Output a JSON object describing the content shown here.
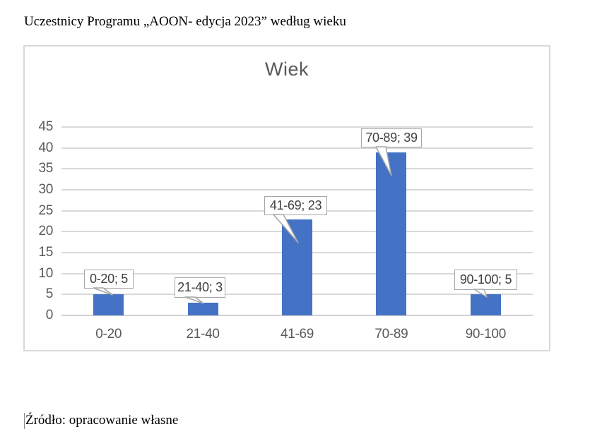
{
  "page": {
    "doc_title": "Uczestnicy Programu „AOON- edycja 2023” według wieku",
    "source_note": "Źródło: opracowanie własne"
  },
  "chart_data": {
    "type": "bar",
    "title": "Wiek",
    "categories": [
      "0-20",
      "21-40",
      "41-69",
      "70-89",
      "90-100"
    ],
    "values": [
      5,
      3,
      23,
      39,
      5
    ],
    "data_labels": [
      "0-20; 5",
      "21-40; 3",
      "41-69; 23",
      "70-89; 39",
      "90-100; 5"
    ],
    "y_ticks": [
      0,
      5,
      10,
      15,
      20,
      25,
      30,
      35,
      40,
      45
    ],
    "ylim": [
      0,
      45
    ],
    "xlabel": "",
    "ylabel": "",
    "legend": "none",
    "grid": "horizontal",
    "colors": {
      "bar": "#4472C4",
      "gridline": "#D9D9D9",
      "axis_line": "#D0D0D0",
      "axis_text": "#595959",
      "title_text": "#595959",
      "callout_border": "#A6A6A6",
      "callout_text": "#404040",
      "frame_border": "#D9D9D9"
    }
  }
}
